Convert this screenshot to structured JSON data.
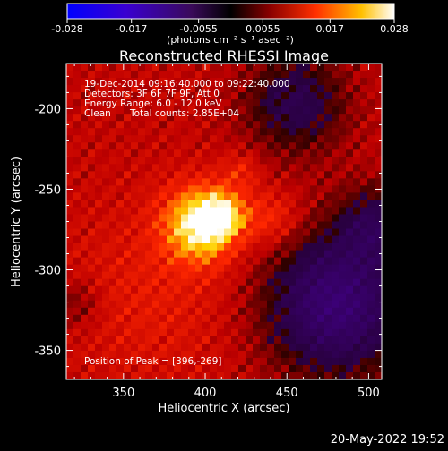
{
  "chart_data": {
    "type": "heatmap",
    "title": "Reconstructed RHESSI Image",
    "xlabel": "Heliocentric X (arcsec)",
    "ylabel": "Heliocentric Y (arcsec)",
    "xlim": [
      315,
      508
    ],
    "ylim": [
      -368,
      -172
    ],
    "xticks": [
      350,
      400,
      450,
      500
    ],
    "yticks": [
      -200,
      -250,
      -300,
      -350
    ],
    "colorbar": {
      "min": -0.028,
      "max": 0.028,
      "ticks": [
        "-0.028",
        "-0.017",
        "-0.0055",
        "0.0055",
        "0.017",
        "0.028"
      ],
      "unit_label": "(photons cm⁻² s⁻¹ asec⁻²)"
    },
    "annotations": {
      "time_range": "19-Dec-2014 09:16:40.000 to 09:22:40.000",
      "detectors": "Detectors: 3F 6F 7F 9F, Att 0",
      "energy": "Energy Range: 6.0 - 12.0 keV",
      "clean": "Clean",
      "counts": "Total counts: 2.85E+04",
      "peak": "Position of Peak = [396,-269]"
    },
    "peak": {
      "x": 396,
      "y": -269
    },
    "timestamp": "20-May-2022 19:52"
  }
}
